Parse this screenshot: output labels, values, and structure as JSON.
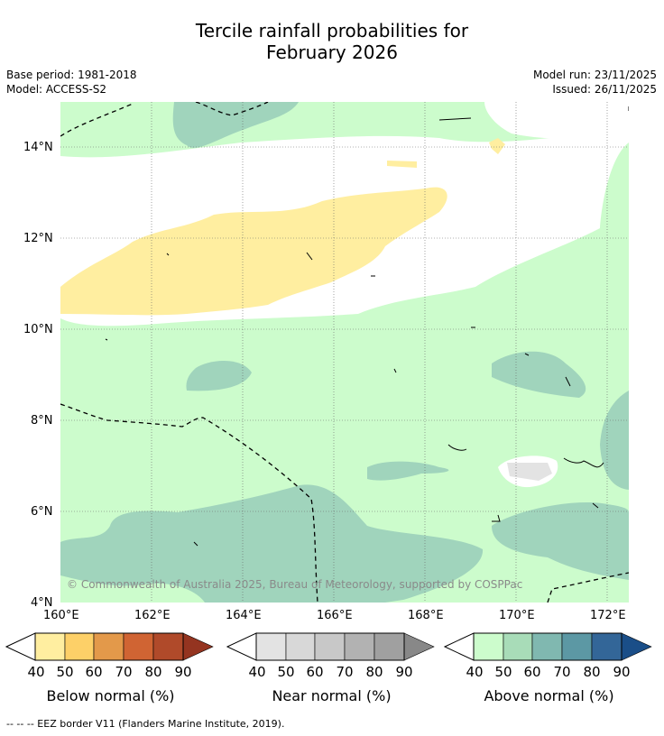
{
  "title_line1": "Tercile rainfall probabilities for",
  "title_line2": "February 2026",
  "base_period": "Base period: 1981-2018",
  "model": "Model: ACCESS-S2",
  "model_run": "Model run: 23/11/2025",
  "issued": "Issued: 26/11/2025",
  "lat_labels": [
    "14°N",
    "12°N",
    "10°N",
    "8°N",
    "6°N",
    "4°N"
  ],
  "lon_labels": [
    "160°E",
    "162°E",
    "164°E",
    "166°E",
    "168°E",
    "170°E",
    "172°E"
  ],
  "copyright": "© Commonwealth of Australia 2025, Bureau of Meteorology, supported by COSPPac",
  "colorbars": [
    {
      "label": "Below normal (%)",
      "ticks": [
        "40",
        "50",
        "60",
        "70",
        "80",
        "90"
      ],
      "colors": [
        "#ffeea0",
        "#fdd068",
        "#e3994a",
        "#d06433",
        "#b04a2a",
        "#943420"
      ]
    },
    {
      "label": "Near normal (%)",
      "ticks": [
        "40",
        "50",
        "60",
        "70",
        "80",
        "90"
      ],
      "colors": [
        "#e3e3e3",
        "#d8d8d8",
        "#c8c8c8",
        "#b2b2b2",
        "#a0a0a0",
        "#888888"
      ]
    },
    {
      "label": "Above normal (%)",
      "ticks": [
        "40",
        "50",
        "60",
        "70",
        "80",
        "90"
      ],
      "colors": [
        "#ccfccc",
        "#a8dcb8",
        "#80b8b0",
        "#5c98a4",
        "#336698",
        "#1a4e88"
      ]
    }
  ],
  "footnote": "--  --  -- EEZ border V11 (Flanders Marine Institute, 2019)."
}
